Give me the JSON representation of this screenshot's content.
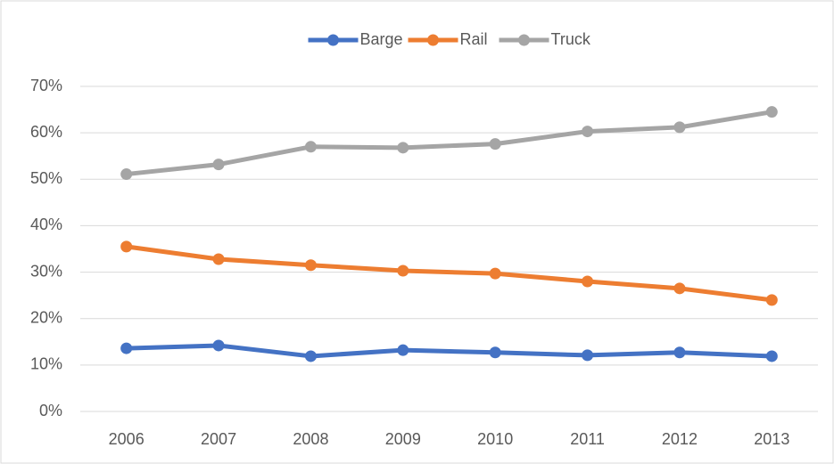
{
  "chart_data": {
    "type": "line",
    "categories": [
      "2006",
      "2007",
      "2008",
      "2009",
      "2010",
      "2011",
      "2012",
      "2013"
    ],
    "series": [
      {
        "name": "Barge",
        "color": "#4472c4",
        "values": [
          13.6,
          14.2,
          11.9,
          13.2,
          12.7,
          12.1,
          12.7,
          11.9
        ]
      },
      {
        "name": "Rail",
        "color": "#ed7d31",
        "values": [
          35.5,
          32.8,
          31.5,
          30.3,
          29.7,
          28.0,
          26.5,
          24.0
        ]
      },
      {
        "name": "Truck",
        "color": "#a5a5a5",
        "values": [
          51.1,
          53.2,
          57.0,
          56.8,
          57.6,
          60.3,
          61.2,
          64.5
        ]
      }
    ],
    "ylim": [
      0,
      70
    ],
    "yticks": [
      {
        "value": 0,
        "label": "0%"
      },
      {
        "value": 10,
        "label": "10%"
      },
      {
        "value": 20,
        "label": "20%"
      },
      {
        "value": 30,
        "label": "30%"
      },
      {
        "value": 40,
        "label": "40%"
      },
      {
        "value": 50,
        "label": "50%"
      },
      {
        "value": 60,
        "label": "60%"
      },
      {
        "value": 70,
        "label": "70%"
      }
    ],
    "grid": true,
    "legend": "top"
  }
}
